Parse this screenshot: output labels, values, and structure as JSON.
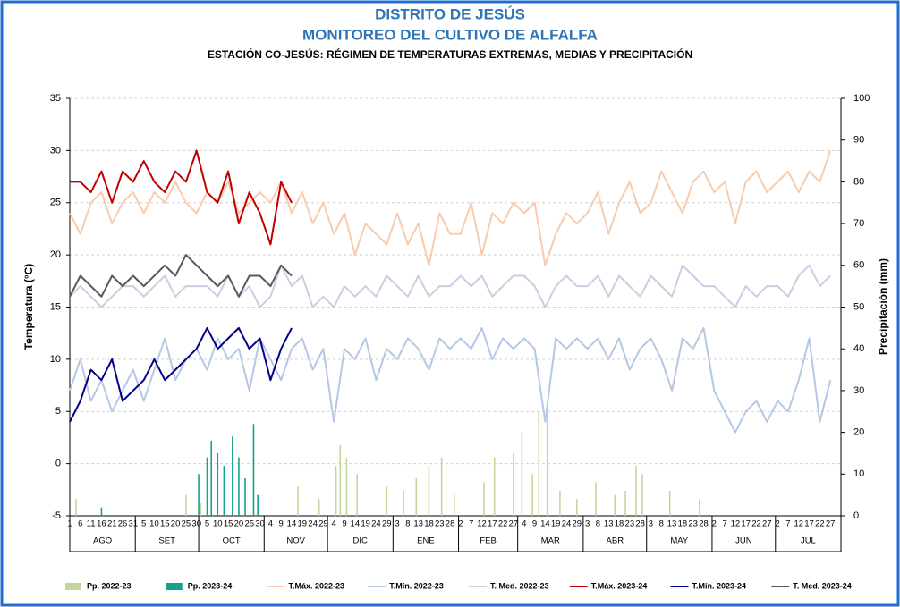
{
  "chart_data": {
    "type": "line",
    "title": [
      "DISTRITO DE JESÚS",
      "MONITOREO DEL CULTIVO DE ALFALFA"
    ],
    "subtitle": "ESTACIÓN CO-JESÚS: RÉGIMEN DE TEMPERATURAS EXTREMAS, MEDIAS Y PRECIPITACIÓN",
    "y_label": "Temperatura (°C)",
    "y2_label": "Precipitación (mm)",
    "ylim": [
      -5,
      35
    ],
    "yticks": [
      -5,
      0,
      5,
      10,
      15,
      20,
      25,
      30,
      35
    ],
    "y2lim": [
      0,
      100
    ],
    "y2ticks": [
      0,
      10,
      20,
      30,
      40,
      50,
      60,
      70,
      80,
      90,
      100
    ],
    "xlim": [
      0,
      365
    ],
    "grid": true,
    "legend": "bottom",
    "xticks": [
      {
        "value": 0,
        "label": "1"
      },
      {
        "value": 5,
        "label": "6"
      },
      {
        "value": 10,
        "label": "11"
      },
      {
        "value": 15,
        "label": "16"
      },
      {
        "value": 20,
        "label": "21"
      },
      {
        "value": 25,
        "label": "26"
      },
      {
        "value": 30,
        "label": "31"
      },
      {
        "value": 35,
        "label": "5"
      },
      {
        "value": 40,
        "label": "10"
      },
      {
        "value": 45,
        "label": "15"
      },
      {
        "value": 50,
        "label": "20"
      },
      {
        "value": 55,
        "label": "25"
      },
      {
        "value": 60,
        "label": "30"
      },
      {
        "value": 65,
        "label": "5"
      },
      {
        "value": 70,
        "label": "10"
      },
      {
        "value": 75,
        "label": "15"
      },
      {
        "value": 80,
        "label": "20"
      },
      {
        "value": 85,
        "label": "25"
      },
      {
        "value": 90,
        "label": "30"
      },
      {
        "value": 95,
        "label": "4"
      },
      {
        "value": 100,
        "label": "9"
      },
      {
        "value": 105,
        "label": "14"
      },
      {
        "value": 110,
        "label": "19"
      },
      {
        "value": 115,
        "label": "24"
      },
      {
        "value": 120,
        "label": "29"
      },
      {
        "value": 125,
        "label": "4"
      },
      {
        "value": 130,
        "label": "9"
      },
      {
        "value": 135,
        "label": "14"
      },
      {
        "value": 140,
        "label": "19"
      },
      {
        "value": 145,
        "label": "24"
      },
      {
        "value": 150,
        "label": "29"
      },
      {
        "value": 155,
        "label": "3"
      },
      {
        "value": 160,
        "label": "8"
      },
      {
        "value": 165,
        "label": "13"
      },
      {
        "value": 170,
        "label": "18"
      },
      {
        "value": 175,
        "label": "23"
      },
      {
        "value": 180,
        "label": "28"
      },
      {
        "value": 185,
        "label": "2"
      },
      {
        "value": 190,
        "label": "7"
      },
      {
        "value": 195,
        "label": "12"
      },
      {
        "value": 200,
        "label": "17"
      },
      {
        "value": 205,
        "label": "22"
      },
      {
        "value": 210,
        "label": "27"
      },
      {
        "value": 215,
        "label": "4"
      },
      {
        "value": 220,
        "label": "9"
      },
      {
        "value": 225,
        "label": "14"
      },
      {
        "value": 230,
        "label": "19"
      },
      {
        "value": 235,
        "label": "24"
      },
      {
        "value": 240,
        "label": "29"
      },
      {
        "value": 245,
        "label": "3"
      },
      {
        "value": 250,
        "label": "8"
      },
      {
        "value": 255,
        "label": "13"
      },
      {
        "value": 260,
        "label": "18"
      },
      {
        "value": 265,
        "label": "23"
      },
      {
        "value": 270,
        "label": "28"
      },
      {
        "value": 275,
        "label": "3"
      },
      {
        "value": 280,
        "label": "8"
      },
      {
        "value": 285,
        "label": "13"
      },
      {
        "value": 290,
        "label": "18"
      },
      {
        "value": 295,
        "label": "23"
      },
      {
        "value": 300,
        "label": "28"
      },
      {
        "value": 305,
        "label": "2"
      },
      {
        "value": 310,
        "label": "7"
      },
      {
        "value": 315,
        "label": "12"
      },
      {
        "value": 320,
        "label": "17"
      },
      {
        "value": 325,
        "label": "22"
      },
      {
        "value": 330,
        "label": "27"
      },
      {
        "value": 335,
        "label": "2"
      },
      {
        "value": 340,
        "label": "7"
      },
      {
        "value": 345,
        "label": "12"
      },
      {
        "value": 350,
        "label": "17"
      },
      {
        "value": 355,
        "label": "22"
      },
      {
        "value": 360,
        "label": "27"
      }
    ],
    "months": [
      {
        "label": "AGO",
        "start": 0,
        "end": 31
      },
      {
        "label": "SET",
        "start": 31,
        "end": 61
      },
      {
        "label": "OCT",
        "start": 61,
        "end": 92
      },
      {
        "label": "NOV",
        "start": 92,
        "end": 122
      },
      {
        "label": "DIC",
        "start": 122,
        "end": 153
      },
      {
        "label": "ENE",
        "start": 153,
        "end": 184
      },
      {
        "label": "FEB",
        "start": 184,
        "end": 212
      },
      {
        "label": "MAR",
        "start": 212,
        "end": 243
      },
      {
        "label": "ABR",
        "start": 243,
        "end": 273
      },
      {
        "label": "MAY",
        "start": 273,
        "end": 304
      },
      {
        "label": "JUN",
        "start": 304,
        "end": 334
      },
      {
        "label": "JUL",
        "start": 334,
        "end": 365
      }
    ],
    "x": [
      0,
      5,
      10,
      15,
      20,
      25,
      30,
      35,
      40,
      45,
      50,
      55,
      60,
      65,
      70,
      75,
      80,
      85,
      90,
      95,
      100,
      105,
      110,
      115,
      120,
      125,
      130,
      135,
      140,
      145,
      150,
      155,
      160,
      165,
      170,
      175,
      180,
      185,
      190,
      195,
      200,
      205,
      210,
      215,
      220,
      225,
      230,
      235,
      240,
      245,
      250,
      255,
      260,
      265,
      270,
      275,
      280,
      285,
      290,
      295,
      300,
      305,
      310,
      315,
      320,
      325,
      330,
      335,
      340,
      345,
      350,
      355,
      360
    ],
    "series": [
      {
        "name": "Pp. 2022-23",
        "kind": "bar",
        "axis": "y2",
        "color": "#c4d79b",
        "x": [
          3,
          55,
          62,
          108,
          118,
          126,
          128,
          131,
          136,
          150,
          158,
          164,
          170,
          176,
          182,
          196,
          201,
          210,
          214,
          219,
          222,
          226,
          232,
          240,
          249,
          258,
          263,
          268,
          271,
          284,
          298
        ],
        "values": [
          4,
          5,
          3,
          7,
          4,
          12,
          17,
          14,
          10,
          7,
          6,
          9,
          12,
          14,
          5,
          8,
          14,
          15,
          20,
          10,
          25,
          26,
          6,
          4,
          8,
          5,
          6,
          12,
          10,
          6,
          4
        ]
      },
      {
        "name": "Pp. 2023-24",
        "kind": "bar",
        "axis": "y2",
        "color": "#17a08c",
        "x": [
          15,
          61,
          65,
          67,
          70,
          73,
          77,
          80,
          83,
          87,
          89
        ],
        "values": [
          2,
          10,
          14,
          18,
          15,
          12,
          19,
          14,
          9,
          22,
          5
        ]
      },
      {
        "name": "T.Máx. 2022-23",
        "kind": "line",
        "color": "#f8cbad",
        "values": [
          24,
          22,
          25,
          26,
          23,
          25,
          26,
          24,
          26,
          25,
          27,
          25,
          24,
          26,
          25,
          27,
          24,
          25,
          26,
          25,
          27,
          24,
          26,
          23,
          25,
          22,
          24,
          20,
          23,
          22,
          21,
          24,
          21,
          23,
          19,
          24,
          22,
          22,
          25,
          20,
          24,
          23,
          25,
          24,
          25,
          19,
          22,
          24,
          23,
          24,
          26,
          22,
          25,
          27,
          24,
          25,
          28,
          26,
          24,
          27,
          28,
          26,
          27,
          23,
          27,
          28,
          26,
          27,
          28,
          26,
          28,
          27,
          30
        ]
      },
      {
        "name": "T.Mín. 2022-23",
        "kind": "line",
        "color": "#b4c7e7",
        "values": [
          7,
          10,
          6,
          8,
          5,
          7,
          9,
          6,
          9,
          12,
          8,
          10,
          11,
          9,
          12,
          10,
          11,
          7,
          12,
          10,
          8,
          11,
          12,
          9,
          11,
          4,
          11,
          10,
          12,
          8,
          11,
          10,
          12,
          11,
          9,
          12,
          11,
          12,
          11,
          13,
          10,
          12,
          11,
          12,
          11,
          4,
          12,
          11,
          12,
          11,
          12,
          10,
          12,
          9,
          11,
          12,
          10,
          7,
          12,
          11,
          13,
          7,
          5,
          3,
          5,
          6,
          4,
          6,
          5,
          8,
          12,
          4,
          8
        ]
      },
      {
        "name": "T. Med. 2022-23",
        "kind": "line",
        "color": "#d5c8e3",
        "values": [
          16,
          17,
          16,
          15,
          16,
          17,
          17,
          16,
          17,
          18,
          16,
          17,
          17,
          17,
          16,
          18,
          16,
          17,
          15,
          16,
          19,
          17,
          18,
          15,
          16,
          15,
          17,
          16,
          17,
          16,
          18,
          17,
          16,
          18,
          16,
          17,
          17,
          18,
          17,
          18,
          16,
          17,
          18,
          18,
          17,
          15,
          17,
          18,
          17,
          17,
          18,
          16,
          18,
          17,
          16,
          18,
          17,
          16,
          19,
          18,
          17,
          17,
          16,
          15,
          17,
          16,
          17,
          17,
          16,
          18,
          19,
          17,
          18
        ]
      },
      {
        "name": "T.Máx. 2023-24",
        "kind": "line",
        "color": "#c00000",
        "x": [
          0,
          5,
          10,
          15,
          20,
          25,
          30,
          35,
          40,
          45,
          50,
          55,
          60,
          65,
          70,
          75,
          80,
          85,
          90,
          95,
          100,
          105
        ],
        "values": [
          27,
          27,
          26,
          28,
          25,
          28,
          27,
          29,
          27,
          26,
          28,
          27,
          30,
          26,
          25,
          28,
          23,
          26,
          24,
          21,
          27,
          25
        ]
      },
      {
        "name": "T.Mín. 2023-24",
        "kind": "line",
        "color": "#00008b",
        "x": [
          0,
          5,
          10,
          15,
          20,
          25,
          30,
          35,
          40,
          45,
          50,
          55,
          60,
          65,
          70,
          75,
          80,
          85,
          90,
          95,
          100,
          105
        ],
        "values": [
          4,
          6,
          9,
          8,
          10,
          6,
          7,
          8,
          10,
          8,
          9,
          10,
          11,
          13,
          11,
          12,
          13,
          11,
          12,
          8,
          11,
          13
        ]
      },
      {
        "name": "T. Med. 2023-24",
        "kind": "line",
        "color": "#595959",
        "x": [
          0,
          5,
          10,
          15,
          20,
          25,
          30,
          35,
          40,
          45,
          50,
          55,
          60,
          65,
          70,
          75,
          80,
          85,
          90,
          95,
          100,
          105
        ],
        "values": [
          16,
          18,
          17,
          16,
          18,
          17,
          18,
          17,
          18,
          19,
          18,
          20,
          19,
          18,
          17,
          18,
          16,
          18,
          18,
          17,
          19,
          18
        ]
      }
    ]
  }
}
